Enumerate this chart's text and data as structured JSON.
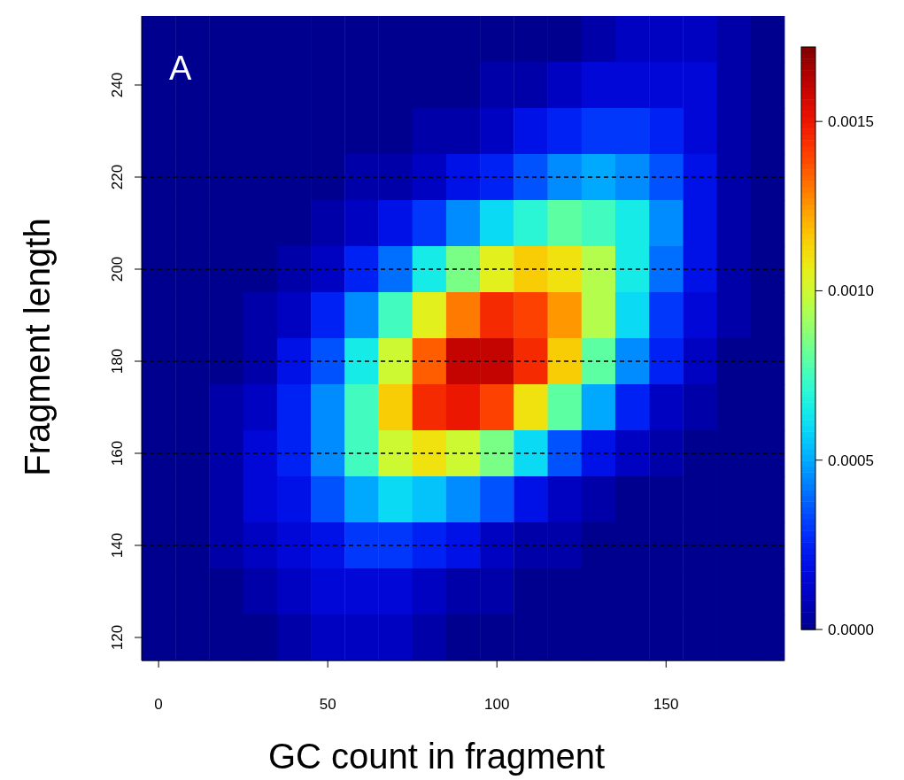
{
  "chart_data": {
    "type": "heatmap",
    "xlabel": "GC count in fragment",
    "ylabel": "Fragment length",
    "annotations": [
      "A"
    ],
    "categories": [
      "0",
      null,
      null,
      null,
      null,
      "50",
      null,
      null,
      null,
      null,
      "100",
      null,
      null,
      null,
      null,
      "150",
      null,
      null,
      null
    ],
    "y_categories": [
      null,
      "240",
      null,
      "220",
      null,
      "200",
      null,
      "180",
      null,
      "160",
      null,
      "140",
      null,
      "120"
    ],
    "clim": [
      0,
      0.00172
    ],
    "cticks": [
      {
        "value": 0,
        "label": "0.0000"
      },
      {
        "value": 0.0005,
        "label": "0.0005"
      },
      {
        "value": 0.001,
        "label": "0.0010"
      },
      {
        "value": 0.0015,
        "label": "0.0015"
      }
    ],
    "ref_lines": [
      {
        "axis": "y",
        "value": "140",
        "color": "#000000",
        "line_style": "dashed"
      },
      {
        "axis": "y",
        "value": "160",
        "color": "#000000",
        "line_style": "dashed"
      },
      {
        "axis": "y",
        "value": "180",
        "color": "#000000",
        "line_style": "dashed"
      },
      {
        "axis": "y",
        "value": "200",
        "color": "#000000",
        "line_style": "dashed"
      },
      {
        "axis": "y",
        "value": "220",
        "color": "#000000",
        "line_style": "dashed"
      }
    ],
    "cells": [
      [
        0,
        0,
        0,
        0,
        0,
        0,
        0,
        0,
        0,
        0,
        0,
        0,
        0,
        5e-05,
        0.0001,
        0.0001,
        0.0001,
        5e-05,
        0
      ],
      [
        0,
        0,
        0,
        0,
        0,
        0,
        0,
        0,
        0,
        0,
        5e-05,
        5e-05,
        0.0001,
        0.00015,
        0.00015,
        0.00015,
        0.00015,
        5e-05,
        0
      ],
      [
        0,
        0,
        0,
        0,
        0,
        0,
        0,
        0,
        5e-05,
        5e-05,
        0.0001,
        0.0002,
        0.00025,
        0.0003,
        0.0003,
        0.00025,
        0.00015,
        5e-05,
        0
      ],
      [
        0,
        0,
        0,
        0,
        0,
        0,
        5e-05,
        5e-05,
        0.0001,
        0.0002,
        0.00025,
        0.00035,
        0.00045,
        0.0005,
        0.00045,
        0.00035,
        0.0002,
        5e-05,
        0
      ],
      [
        0,
        0,
        0,
        0,
        0,
        5e-05,
        0.0001,
        0.0002,
        0.0003,
        0.00045,
        0.0006,
        0.0007,
        0.0008,
        0.00075,
        0.00065,
        0.00045,
        0.0002,
        5e-05,
        0
      ],
      [
        0,
        0,
        0,
        0,
        5e-05,
        0.0001,
        0.00025,
        0.0004,
        0.00065,
        0.00085,
        0.00105,
        0.00115,
        0.0011,
        0.00095,
        0.00065,
        0.0004,
        0.0002,
        5e-05,
        0
      ],
      [
        0,
        0,
        0,
        5e-05,
        0.0001,
        0.00025,
        0.00045,
        0.00075,
        0.00105,
        0.0013,
        0.00145,
        0.0014,
        0.00125,
        0.00095,
        0.0006,
        0.0003,
        0.00015,
        5e-05,
        0
      ],
      [
        0,
        0,
        0,
        5e-05,
        0.0002,
        0.00035,
        0.00065,
        0.001,
        0.00135,
        0.0016,
        0.0016,
        0.00145,
        0.00115,
        0.0008,
        0.00045,
        0.00025,
        0.0001,
        0,
        0
      ],
      [
        0,
        0,
        5e-05,
        0.0001,
        0.00025,
        0.00045,
        0.00075,
        0.00115,
        0.00145,
        0.0015,
        0.0014,
        0.0011,
        0.0008,
        0.0005,
        0.00025,
        0.0001,
        5e-05,
        0,
        0
      ],
      [
        0,
        0,
        5e-05,
        0.00015,
        0.00025,
        0.00045,
        0.00075,
        0.001,
        0.0011,
        0.001,
        0.00085,
        0.0006,
        0.00035,
        0.0002,
        0.0001,
        5e-05,
        0,
        0,
        0
      ],
      [
        0,
        0,
        5e-05,
        0.00015,
        0.0002,
        0.00035,
        0.0005,
        0.0006,
        0.00055,
        0.00045,
        0.00035,
        0.0002,
        0.0001,
        5e-05,
        0,
        0,
        0,
        0,
        0
      ],
      [
        0,
        0,
        5e-05,
        0.0001,
        0.00015,
        0.0002,
        0.0003,
        0.0003,
        0.00025,
        0.0002,
        0.0001,
        5e-05,
        5e-05,
        0,
        0,
        0,
        0,
        0,
        0
      ],
      [
        0,
        0,
        0,
        5e-05,
        0.0001,
        0.00015,
        0.00015,
        0.00015,
        0.0001,
        5e-05,
        5e-05,
        0,
        0,
        0,
        0,
        0,
        0,
        0,
        0
      ],
      [
        0,
        0,
        0,
        0,
        5e-05,
        0.0001,
        0.0001,
        0.0001,
        5e-05,
        0,
        0,
        0,
        0,
        0,
        0,
        0,
        0,
        0,
        0
      ]
    ]
  }
}
